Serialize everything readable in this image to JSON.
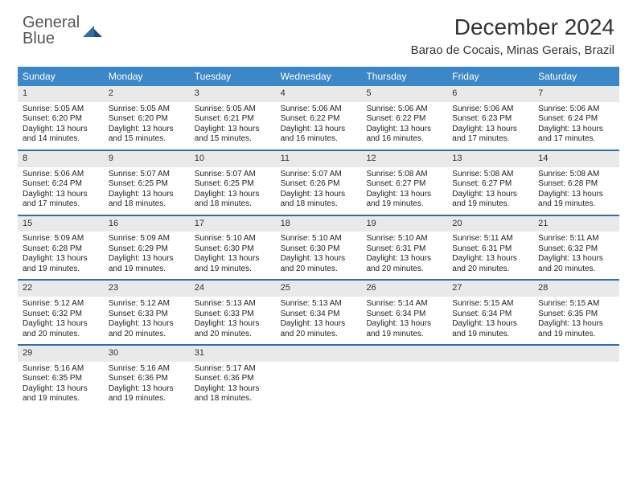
{
  "logo": {
    "line1": "General",
    "line2": "Blue"
  },
  "title": "December 2024",
  "location": "Barao de Cocais, Minas Gerais, Brazil",
  "colors": {
    "header_bg": "#3b87c8",
    "week_border": "#2f6fa8",
    "daynum_bg": "#e9e9e9",
    "text": "#222222",
    "logo_gray": "#555555",
    "logo_blue": "#2f6fa8"
  },
  "weekdays": [
    "Sunday",
    "Monday",
    "Tuesday",
    "Wednesday",
    "Thursday",
    "Friday",
    "Saturday"
  ],
  "weeks": [
    [
      {
        "n": "1",
        "sr": "5:05 AM",
        "ss": "6:20 PM",
        "dl": "13 hours and 14 minutes."
      },
      {
        "n": "2",
        "sr": "5:05 AM",
        "ss": "6:20 PM",
        "dl": "13 hours and 15 minutes."
      },
      {
        "n": "3",
        "sr": "5:05 AM",
        "ss": "6:21 PM",
        "dl": "13 hours and 15 minutes."
      },
      {
        "n": "4",
        "sr": "5:06 AM",
        "ss": "6:22 PM",
        "dl": "13 hours and 16 minutes."
      },
      {
        "n": "5",
        "sr": "5:06 AM",
        "ss": "6:22 PM",
        "dl": "13 hours and 16 minutes."
      },
      {
        "n": "6",
        "sr": "5:06 AM",
        "ss": "6:23 PM",
        "dl": "13 hours and 17 minutes."
      },
      {
        "n": "7",
        "sr": "5:06 AM",
        "ss": "6:24 PM",
        "dl": "13 hours and 17 minutes."
      }
    ],
    [
      {
        "n": "8",
        "sr": "5:06 AM",
        "ss": "6:24 PM",
        "dl": "13 hours and 17 minutes."
      },
      {
        "n": "9",
        "sr": "5:07 AM",
        "ss": "6:25 PM",
        "dl": "13 hours and 18 minutes."
      },
      {
        "n": "10",
        "sr": "5:07 AM",
        "ss": "6:25 PM",
        "dl": "13 hours and 18 minutes."
      },
      {
        "n": "11",
        "sr": "5:07 AM",
        "ss": "6:26 PM",
        "dl": "13 hours and 18 minutes."
      },
      {
        "n": "12",
        "sr": "5:08 AM",
        "ss": "6:27 PM",
        "dl": "13 hours and 19 minutes."
      },
      {
        "n": "13",
        "sr": "5:08 AM",
        "ss": "6:27 PM",
        "dl": "13 hours and 19 minutes."
      },
      {
        "n": "14",
        "sr": "5:08 AM",
        "ss": "6:28 PM",
        "dl": "13 hours and 19 minutes."
      }
    ],
    [
      {
        "n": "15",
        "sr": "5:09 AM",
        "ss": "6:28 PM",
        "dl": "13 hours and 19 minutes."
      },
      {
        "n": "16",
        "sr": "5:09 AM",
        "ss": "6:29 PM",
        "dl": "13 hours and 19 minutes."
      },
      {
        "n": "17",
        "sr": "5:10 AM",
        "ss": "6:30 PM",
        "dl": "13 hours and 19 minutes."
      },
      {
        "n": "18",
        "sr": "5:10 AM",
        "ss": "6:30 PM",
        "dl": "13 hours and 20 minutes."
      },
      {
        "n": "19",
        "sr": "5:10 AM",
        "ss": "6:31 PM",
        "dl": "13 hours and 20 minutes."
      },
      {
        "n": "20",
        "sr": "5:11 AM",
        "ss": "6:31 PM",
        "dl": "13 hours and 20 minutes."
      },
      {
        "n": "21",
        "sr": "5:11 AM",
        "ss": "6:32 PM",
        "dl": "13 hours and 20 minutes."
      }
    ],
    [
      {
        "n": "22",
        "sr": "5:12 AM",
        "ss": "6:32 PM",
        "dl": "13 hours and 20 minutes."
      },
      {
        "n": "23",
        "sr": "5:12 AM",
        "ss": "6:33 PM",
        "dl": "13 hours and 20 minutes."
      },
      {
        "n": "24",
        "sr": "5:13 AM",
        "ss": "6:33 PM",
        "dl": "13 hours and 20 minutes."
      },
      {
        "n": "25",
        "sr": "5:13 AM",
        "ss": "6:34 PM",
        "dl": "13 hours and 20 minutes."
      },
      {
        "n": "26",
        "sr": "5:14 AM",
        "ss": "6:34 PM",
        "dl": "13 hours and 19 minutes."
      },
      {
        "n": "27",
        "sr": "5:15 AM",
        "ss": "6:34 PM",
        "dl": "13 hours and 19 minutes."
      },
      {
        "n": "28",
        "sr": "5:15 AM",
        "ss": "6:35 PM",
        "dl": "13 hours and 19 minutes."
      }
    ],
    [
      {
        "n": "29",
        "sr": "5:16 AM",
        "ss": "6:35 PM",
        "dl": "13 hours and 19 minutes."
      },
      {
        "n": "30",
        "sr": "5:16 AM",
        "ss": "6:36 PM",
        "dl": "13 hours and 19 minutes."
      },
      {
        "n": "31",
        "sr": "5:17 AM",
        "ss": "6:36 PM",
        "dl": "13 hours and 18 minutes."
      },
      null,
      null,
      null,
      null
    ]
  ],
  "labels": {
    "sunrise": "Sunrise:",
    "sunset": "Sunset:",
    "daylight": "Daylight:"
  }
}
